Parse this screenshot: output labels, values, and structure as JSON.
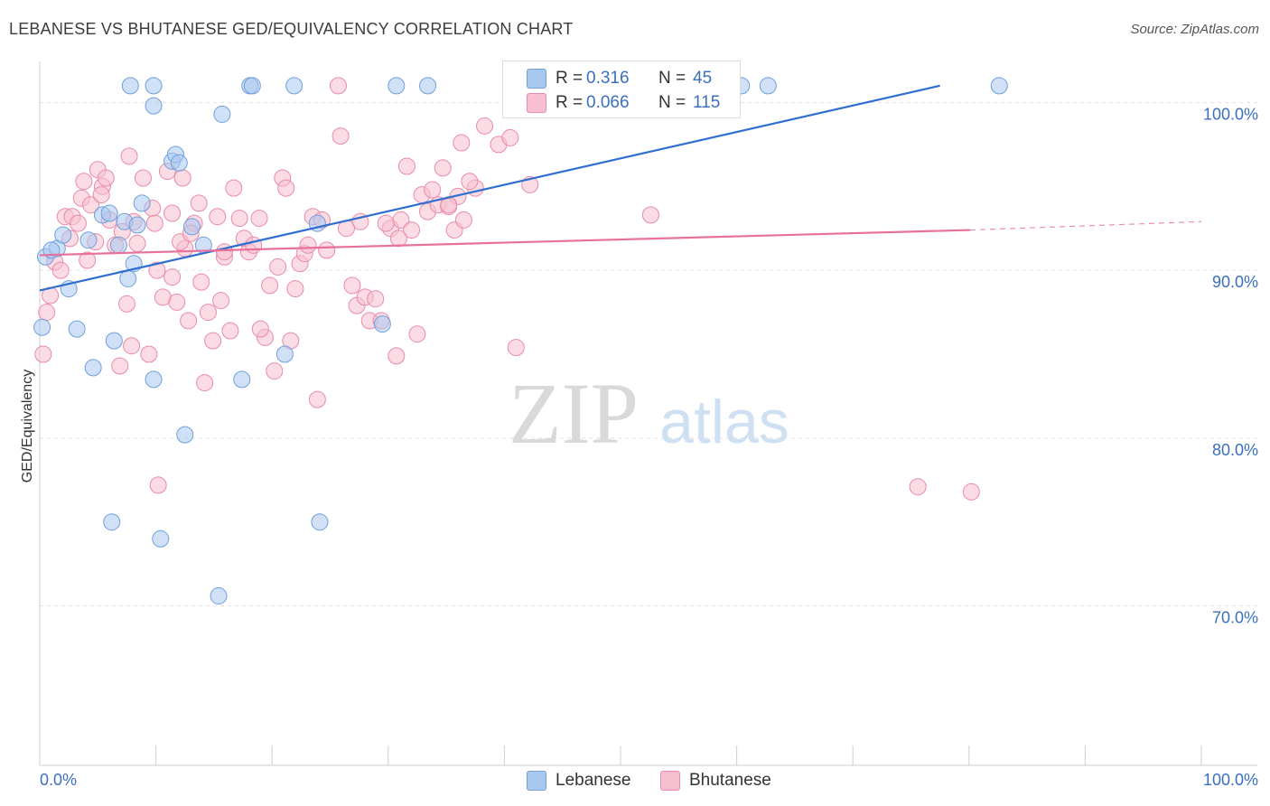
{
  "header": {
    "title": "LEBANESE VS BHUTANESE GED/EQUIVALENCY CORRELATION CHART",
    "source": "Source: ZipAtlas.com"
  },
  "watermark": {
    "zip": "ZIP",
    "atlas": "atlas"
  },
  "legend": {
    "r_label": "R =",
    "n_label": "N =",
    "series": [
      {
        "name": "Lebanese",
        "r": "0.316",
        "n": "45",
        "fill": "#a9c8f0",
        "stroke": "#6f9fdc",
        "text_color": "#3b6fc0"
      },
      {
        "name": "Bhutanese",
        "r": "0.066",
        "n": "115",
        "fill": "#f7bfd0",
        "stroke": "#e98aa8",
        "text_color": "#3b6fc0"
      }
    ]
  },
  "colors": {
    "blue_line": "#2f6fcf",
    "pink_line": "#e8719a",
    "axis_text": "#3b6fc0",
    "grid": "#e2e2e2"
  },
  "chart_data": {
    "type": "scatter",
    "title": "LEBANESE VS BHUTANESE GED/EQUIVALENCY CORRELATION CHART",
    "xlabel": "",
    "ylabel": "GED/Equivalency",
    "x_tick_labels": [
      "0.0%",
      "100.0%"
    ],
    "y_tick_labels": [
      "100.0%",
      "90.0%",
      "80.0%",
      "70.0%"
    ],
    "y_ticks": [
      99,
      89,
      79,
      69
    ],
    "xlim": [
      0,
      100
    ],
    "ylim": [
      59.5,
      100.8
    ],
    "grid": true,
    "legend_position": "top-center",
    "series": [
      {
        "name": "Lebanese",
        "points": [
          [
            0.5,
            89.8
          ],
          [
            0.2,
            85.6
          ],
          [
            1.5,
            90.3
          ],
          [
            2.0,
            91.1
          ],
          [
            2.5,
            87.9
          ],
          [
            3.2,
            85.5
          ],
          [
            4.2,
            90.8
          ],
          [
            4.6,
            83.2
          ],
          [
            5.4,
            92.3
          ],
          [
            6.0,
            92.4
          ],
          [
            6.4,
            84.8
          ],
          [
            6.8,
            90.5
          ],
          [
            7.3,
            91.9
          ],
          [
            7.6,
            88.5
          ],
          [
            8.1,
            89.4
          ],
          [
            8.4,
            91.7
          ],
          [
            8.8,
            93.0
          ],
          [
            9.8,
            98.8
          ],
          [
            9.8,
            82.5
          ],
          [
            10.4,
            73.0
          ],
          [
            11.4,
            95.5
          ],
          [
            11.7,
            95.9
          ],
          [
            12.0,
            95.4
          ],
          [
            12.5,
            79.2
          ],
          [
            13.1,
            91.6
          ],
          [
            14.1,
            90.5
          ],
          [
            15.4,
            69.6
          ],
          [
            15.7,
            98.3
          ],
          [
            17.4,
            82.5
          ],
          [
            18.1,
            100.0
          ],
          [
            18.3,
            100.0
          ],
          [
            21.1,
            84.0
          ],
          [
            21.9,
            100.0
          ],
          [
            23.9,
            91.8
          ],
          [
            24.1,
            74.0
          ],
          [
            29.5,
            85.8
          ],
          [
            30.7,
            100.0
          ],
          [
            33.4,
            100.0
          ],
          [
            60.4,
            100.0
          ],
          [
            82.6,
            100.0
          ],
          [
            9.8,
            100.0
          ],
          [
            7.8,
            100.0
          ],
          [
            62.7,
            100.0
          ],
          [
            1.0,
            90.2
          ],
          [
            6.2,
            74.0
          ]
        ]
      },
      {
        "name": "Bhutanese",
        "points": [
          [
            0.3,
            84.0
          ],
          [
            0.6,
            86.5
          ],
          [
            0.9,
            87.5
          ],
          [
            1.3,
            89.5
          ],
          [
            1.8,
            89.0
          ],
          [
            2.2,
            92.2
          ],
          [
            2.6,
            90.9
          ],
          [
            2.8,
            92.2
          ],
          [
            3.3,
            91.8
          ],
          [
            3.6,
            93.3
          ],
          [
            3.8,
            94.3
          ],
          [
            4.1,
            89.6
          ],
          [
            4.4,
            92.9
          ],
          [
            5.0,
            95.0
          ],
          [
            5.4,
            94.0
          ],
          [
            5.7,
            94.5
          ],
          [
            6.0,
            92.0
          ],
          [
            6.5,
            90.5
          ],
          [
            6.9,
            83.3
          ],
          [
            7.1,
            91.3
          ],
          [
            7.5,
            87.0
          ],
          [
            7.7,
            95.8
          ],
          [
            7.9,
            84.5
          ],
          [
            8.4,
            90.6
          ],
          [
            8.9,
            94.5
          ],
          [
            9.4,
            84.0
          ],
          [
            9.7,
            92.7
          ],
          [
            10.1,
            89.0
          ],
          [
            10.2,
            76.2
          ],
          [
            10.6,
            87.4
          ],
          [
            11.0,
            94.9
          ],
          [
            11.4,
            92.4
          ],
          [
            11.8,
            87.1
          ],
          [
            12.3,
            94.5
          ],
          [
            12.5,
            90.3
          ],
          [
            12.8,
            86.0
          ],
          [
            13.3,
            91.8
          ],
          [
            13.7,
            93.0
          ],
          [
            13.9,
            88.3
          ],
          [
            14.2,
            82.3
          ],
          [
            14.5,
            86.5
          ],
          [
            14.9,
            84.8
          ],
          [
            15.3,
            92.2
          ],
          [
            15.6,
            87.2
          ],
          [
            15.9,
            89.8
          ],
          [
            16.4,
            85.4
          ],
          [
            16.7,
            93.9
          ],
          [
            17.2,
            92.1
          ],
          [
            17.6,
            90.9
          ],
          [
            18.0,
            90.1
          ],
          [
            18.4,
            90.5
          ],
          [
            18.9,
            92.1
          ],
          [
            19.4,
            85.0
          ],
          [
            19.8,
            88.1
          ],
          [
            20.2,
            83.0
          ],
          [
            20.5,
            89.2
          ],
          [
            20.9,
            94.5
          ],
          [
            21.2,
            93.9
          ],
          [
            21.6,
            84.8
          ],
          [
            22.0,
            87.9
          ],
          [
            22.4,
            89.4
          ],
          [
            22.8,
            90.0
          ],
          [
            23.1,
            90.5
          ],
          [
            23.5,
            92.2
          ],
          [
            23.9,
            81.3
          ],
          [
            24.3,
            92.0
          ],
          [
            24.7,
            90.2
          ],
          [
            25.7,
            100.0
          ],
          [
            25.9,
            97.0
          ],
          [
            26.9,
            88.1
          ],
          [
            27.3,
            86.9
          ],
          [
            27.6,
            91.9
          ],
          [
            28.0,
            87.4
          ],
          [
            28.4,
            86.0
          ],
          [
            28.9,
            87.3
          ],
          [
            29.4,
            86.0
          ],
          [
            30.2,
            91.5
          ],
          [
            30.7,
            83.9
          ],
          [
            31.1,
            92.0
          ],
          [
            31.6,
            95.2
          ],
          [
            32.0,
            91.4
          ],
          [
            32.5,
            85.2
          ],
          [
            32.9,
            93.5
          ],
          [
            33.4,
            92.5
          ],
          [
            33.8,
            93.8
          ],
          [
            34.3,
            92.9
          ],
          [
            34.7,
            95.1
          ],
          [
            35.2,
            92.8
          ],
          [
            35.7,
            91.4
          ],
          [
            36.0,
            93.4
          ],
          [
            36.5,
            92.0
          ],
          [
            36.3,
            96.6
          ],
          [
            37.5,
            93.9
          ],
          [
            37.0,
            94.3
          ],
          [
            38.3,
            97.6
          ],
          [
            39.5,
            96.5
          ],
          [
            40.5,
            96.9
          ],
          [
            41.0,
            84.4
          ],
          [
            42.2,
            94.1
          ],
          [
            52.6,
            92.3
          ],
          [
            75.6,
            76.1
          ],
          [
            80.2,
            75.8
          ],
          [
            35.2,
            92.9
          ],
          [
            12.1,
            90.7
          ],
          [
            8.1,
            91.9
          ],
          [
            5.3,
            93.5
          ],
          [
            15.9,
            90.1
          ],
          [
            19.0,
            85.5
          ],
          [
            26.4,
            91.5
          ],
          [
            11.4,
            88.6
          ],
          [
            4.8,
            90.7
          ],
          [
            29.8,
            91.8
          ],
          [
            30.9,
            90.9
          ],
          [
            13.0,
            91.2
          ],
          [
            9.9,
            91.8
          ]
        ]
      }
    ],
    "trend_lines": [
      {
        "name": "Lebanese",
        "x": [
          0,
          77.5
        ],
        "y": [
          87.8,
          100.0
        ],
        "dashed_extension": false
      },
      {
        "name": "Bhutanese",
        "x": [
          0,
          80.1
        ],
        "y": [
          89.9,
          91.4
        ],
        "dashed_extension_to": [
          100,
          91.9
        ]
      }
    ]
  }
}
